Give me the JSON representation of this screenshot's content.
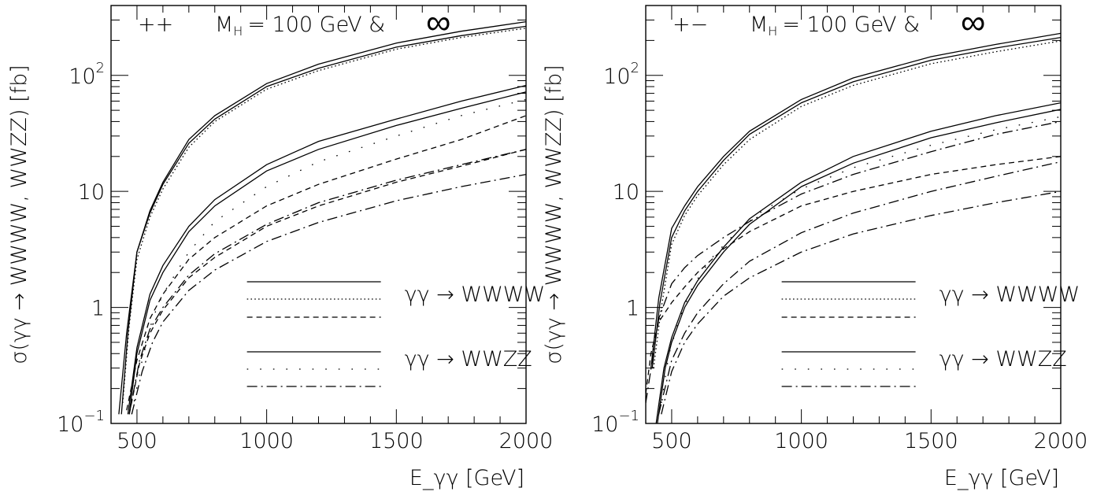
{
  "chart_data": [
    {
      "type": "line",
      "title": "",
      "xlabel": "E_γγ [GeV]",
      "ylabel": "σ(γγ → WWWW, WWZZ) [fb]",
      "xlim": [
        400,
        2000
      ],
      "ylim": [
        0.1,
        400
      ],
      "y_scale": "log",
      "grid": false,
      "legend_placement": "lower-right",
      "x_ticks": [
        {
          "value": 500,
          "label": "500"
        },
        {
          "value": 1000,
          "label": "1000"
        },
        {
          "value": 1500,
          "label": "1500"
        },
        {
          "value": 2000,
          "label": "2000"
        }
      ],
      "y_ticks": [
        {
          "value": 0.1,
          "base": "10",
          "exp": "−1"
        },
        {
          "value": 1,
          "base": "1",
          "exp": ""
        },
        {
          "value": 10,
          "base": "10",
          "exp": ""
        },
        {
          "value": 100,
          "base": "10",
          "exp": "2"
        }
      ],
      "annotations": {
        "helicity": "++",
        "mass": "M",
        "mass_sub": "H",
        "mass_value": "= 100 GeV &",
        "infinity": "∞"
      },
      "legend_groups": [
        {
          "label": "γγ → WWWW",
          "styles": [
            "solid",
            "dotted",
            "dashed"
          ]
        },
        {
          "label": "γγ → WWZZ",
          "styles": [
            "solid",
            "sparse-dotted",
            "dashdot"
          ]
        }
      ],
      "series": [
        {
          "style": "solid",
          "x": [
            430,
            460,
            500,
            550,
            600,
            700,
            800,
            1000,
            1200,
            1500,
            1750,
            2000
          ],
          "y": [
            0.12,
            0.6,
            3.0,
            6.8,
            12,
            28,
            45,
            85,
            125,
            190,
            240,
            290
          ]
        },
        {
          "style": "solid",
          "x": [
            440,
            465,
            500,
            550,
            600,
            700,
            800,
            1000,
            1200,
            1500,
            1750,
            2000
          ],
          "y": [
            0.12,
            0.6,
            3.0,
            6.5,
            11.5,
            26,
            42,
            80,
            115,
            175,
            220,
            265
          ]
        },
        {
          "style": "dotted",
          "x": [
            445,
            470,
            500,
            550,
            600,
            700,
            800,
            1000,
            1200,
            1500,
            1750,
            2000
          ],
          "y": [
            0.15,
            0.7,
            2.6,
            6.0,
            10.5,
            24,
            40,
            76,
            110,
            168,
            212,
            255
          ]
        },
        {
          "style": "solid",
          "x": [
            465,
            500,
            550,
            600,
            700,
            800,
            1000,
            1200,
            1500,
            1750,
            2000
          ],
          "y": [
            0.12,
            0.45,
            1.3,
            2.3,
            5.0,
            8.5,
            17,
            27,
            42,
            60,
            82
          ]
        },
        {
          "style": "solid",
          "x": [
            470,
            500,
            550,
            600,
            700,
            800,
            1000,
            1200,
            1500,
            1750,
            2000
          ],
          "y": [
            0.12,
            0.4,
            1.15,
            2.0,
            4.5,
            7.5,
            15,
            23,
            37,
            52,
            72
          ]
        },
        {
          "style": "sparse-dotted",
          "x": [
            480,
            520,
            560,
            600,
            700,
            800,
            1000,
            1200,
            1500,
            1750,
            2000
          ],
          "y": [
            0.12,
            0.35,
            0.8,
            1.3,
            3.0,
            5.5,
            11,
            18,
            30,
            45,
            62
          ]
        },
        {
          "style": "dashed",
          "x": [
            460,
            500,
            550,
            600,
            700,
            800,
            1000,
            1200,
            1500,
            1750,
            2000
          ],
          "y": [
            0.13,
            0.35,
            0.8,
            1.3,
            2.6,
            4.0,
            7.5,
            11.5,
            19,
            28,
            45
          ]
        },
        {
          "style": "dashdot",
          "x": [
            470,
            510,
            550,
            600,
            700,
            800,
            1000,
            1200,
            1500,
            1750,
            2000
          ],
          "y": [
            0.12,
            0.35,
            0.65,
            1.0,
            1.9,
            2.9,
            5.2,
            8.0,
            12.5,
            17,
            23
          ]
        },
        {
          "style": "dashed",
          "x": [
            470,
            510,
            550,
            600,
            700,
            800,
            1000,
            1200,
            1500,
            1750,
            2000
          ],
          "y": [
            0.12,
            0.33,
            0.6,
            0.95,
            1.8,
            2.7,
            5.0,
            7.5,
            12,
            16.5,
            23
          ]
        },
        {
          "style": "dashdot",
          "x": [
            480,
            520,
            560,
            600,
            700,
            800,
            1000,
            1200,
            1500,
            1750,
            2000
          ],
          "y": [
            0.12,
            0.28,
            0.5,
            0.75,
            1.4,
            2.1,
            3.7,
            5.4,
            8.3,
            11,
            14
          ]
        }
      ]
    },
    {
      "type": "line",
      "title": "",
      "xlabel": "E_γγ [GeV]",
      "ylabel": "σ(γγ → WWWW, WWZZ) [fb]",
      "xlim": [
        400,
        2000
      ],
      "ylim": [
        0.1,
        400
      ],
      "y_scale": "log",
      "grid": false,
      "legend_placement": "lower-right",
      "x_ticks": [
        {
          "value": 500,
          "label": "500"
        },
        {
          "value": 1000,
          "label": "1000"
        },
        {
          "value": 1500,
          "label": "1500"
        },
        {
          "value": 2000,
          "label": "2000"
        }
      ],
      "y_ticks": [
        {
          "value": 0.1,
          "base": "10",
          "exp": "−1"
        },
        {
          "value": 1,
          "base": "1",
          "exp": ""
        },
        {
          "value": 10,
          "base": "10",
          "exp": ""
        },
        {
          "value": 100,
          "base": "10",
          "exp": "2"
        }
      ],
      "annotations": {
        "helicity": "+−",
        "mass": "M",
        "mass_sub": "H",
        "mass_value": "= 100 GeV &",
        "infinity": "∞"
      },
      "legend_groups": [
        {
          "label": "γγ → WWWW",
          "styles": [
            "solid",
            "dotted",
            "dashed"
          ]
        },
        {
          "label": "γγ → WWZZ",
          "styles": [
            "solid",
            "sparse-dotted",
            "dashdot"
          ]
        }
      ],
      "series": [
        {
          "style": "solid",
          "x": [
            420,
            450,
            500,
            550,
            600,
            700,
            800,
            1000,
            1200,
            1500,
            1750,
            2000
          ],
          "y": [
            0.3,
            1.2,
            4.8,
            7.5,
            11,
            20,
            33,
            62,
            95,
            145,
            185,
            230
          ]
        },
        {
          "style": "solid",
          "x": [
            425,
            455,
            500,
            550,
            600,
            700,
            800,
            1000,
            1200,
            1500,
            1750,
            2000
          ],
          "y": [
            0.3,
            1.1,
            4.0,
            6.8,
            10,
            18.5,
            31,
            58,
            88,
            135,
            172,
            212
          ]
        },
        {
          "style": "dotted",
          "x": [
            430,
            460,
            500,
            550,
            600,
            700,
            800,
            1000,
            1200,
            1500,
            1750,
            2000
          ],
          "y": [
            0.3,
            1.0,
            3.5,
            6.2,
            9.2,
            17,
            28,
            54,
            82,
            126,
            160,
            198
          ]
        },
        {
          "style": "dashed",
          "x": [
            400,
            420,
            450,
            500,
            550,
            600,
            700,
            800,
            1000,
            1200,
            1500,
            1750,
            2000
          ],
          "y": [
            0.18,
            0.4,
            0.75,
            1.1,
            1.5,
            2.0,
            3.2,
            4.5,
            7.5,
            10,
            14,
            17,
            20
          ]
        },
        {
          "style": "solid",
          "x": [
            440,
            470,
            500,
            550,
            600,
            700,
            800,
            1000,
            1200,
            1500,
            1750,
            2000
          ],
          "y": [
            0.1,
            0.3,
            0.55,
            1.1,
            1.7,
            3.3,
            5.8,
            12,
            20,
            33,
            45,
            58
          ]
        },
        {
          "style": "solid",
          "x": [
            445,
            475,
            500,
            550,
            600,
            700,
            800,
            1000,
            1200,
            1500,
            1750,
            2000
          ],
          "y": [
            0.1,
            0.3,
            0.5,
            1.0,
            1.55,
            3.0,
            5.2,
            11,
            17.5,
            29,
            39,
            51
          ]
        },
        {
          "style": "sparse-dotted",
          "x": [
            460,
            490,
            530,
            580,
            650,
            750,
            850,
            1000,
            1200,
            1500,
            1750,
            2000
          ],
          "y": [
            0.15,
            0.4,
            0.8,
            1.5,
            2.6,
            4.5,
            6.8,
            10.5,
            16,
            25,
            34,
            44
          ]
        },
        {
          "style": "dashdot",
          "x": [
            400,
            450,
            500,
            550,
            600,
            700,
            800,
            1000,
            1200,
            1500,
            1750,
            2000
          ],
          "y": [
            0.15,
            0.8,
            1.6,
            2.2,
            2.8,
            4.0,
            5.5,
            9.5,
            14,
            22,
            31,
            40
          ]
        },
        {
          "style": "dashdot",
          "x": [
            450,
            500,
            550,
            600,
            700,
            800,
            1000,
            1200,
            1500,
            1750,
            2000
          ],
          "y": [
            0.12,
            0.35,
            0.6,
            0.9,
            1.6,
            2.5,
            4.4,
            6.5,
            10,
            13.5,
            18
          ]
        },
        {
          "style": "dashdot",
          "x": [
            460,
            500,
            550,
            600,
            700,
            800,
            1000,
            1200,
            1500,
            1750,
            2000
          ],
          "y": [
            0.12,
            0.28,
            0.5,
            0.72,
            1.25,
            1.8,
            3.0,
            4.3,
            6.2,
            8.0,
            10
          ]
        }
      ]
    }
  ]
}
